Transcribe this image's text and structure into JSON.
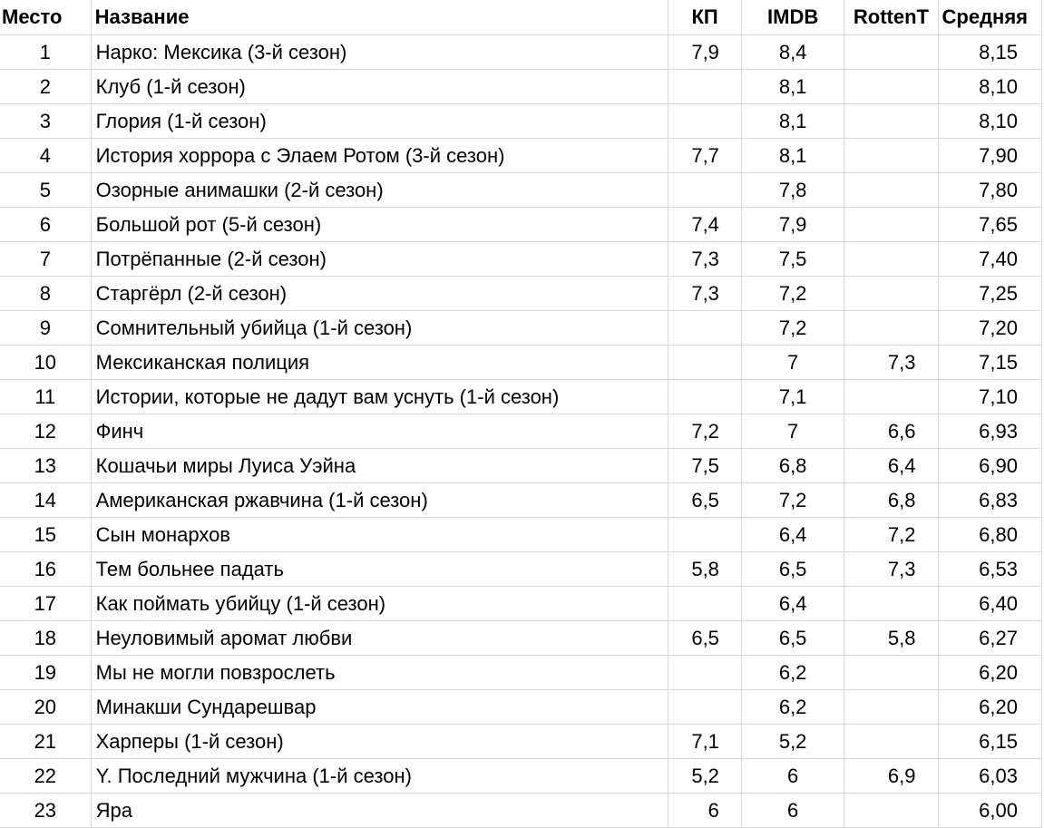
{
  "columns": {
    "rank": "Место",
    "name": "Название",
    "kp": "КП",
    "imdb": "IMDB",
    "rt": "RottenT",
    "avg": "Средняя"
  },
  "rows": [
    {
      "rank": "1",
      "name": "Нарко: Мексика (3-й сезон)",
      "kp": "7,9",
      "imdb": "8,4",
      "rt": "",
      "avg": "8,15"
    },
    {
      "rank": "2",
      "name": "Клуб (1-й сезон)",
      "kp": "",
      "imdb": "8,1",
      "rt": "",
      "avg": "8,10"
    },
    {
      "rank": "3",
      "name": "Глория (1-й сезон)",
      "kp": "",
      "imdb": "8,1",
      "rt": "",
      "avg": "8,10"
    },
    {
      "rank": "4",
      "name": "История хоррора с Элаем Ротом (3-й сезон)",
      "kp": "7,7",
      "imdb": "8,1",
      "rt": "",
      "avg": "7,90"
    },
    {
      "rank": "5",
      "name": "Озорные анимашки (2-й сезон)",
      "kp": "",
      "imdb": "7,8",
      "rt": "",
      "avg": "7,80"
    },
    {
      "rank": "6",
      "name": "Большой рот (5-й сезон)",
      "kp": "7,4",
      "imdb": "7,9",
      "rt": "",
      "avg": "7,65"
    },
    {
      "rank": "7",
      "name": "Потрёпанные (2-й сезон)",
      "kp": "7,3",
      "imdb": "7,5",
      "rt": "",
      "avg": "7,40"
    },
    {
      "rank": "8",
      "name": "Старгёрл (2-й сезон)",
      "kp": "7,3",
      "imdb": "7,2",
      "rt": "",
      "avg": "7,25"
    },
    {
      "rank": "9",
      "name": "Сомнительный убийца (1-й сезон)",
      "kp": "",
      "imdb": "7,2",
      "rt": "",
      "avg": "7,20"
    },
    {
      "rank": "10",
      "name": "Мексиканская полиция",
      "kp": "",
      "imdb": "7",
      "rt": "7,3",
      "avg": "7,15"
    },
    {
      "rank": "11",
      "name": "Истории, которые не дадут вам уснуть (1-й сезон)",
      "kp": "",
      "imdb": "7,1",
      "rt": "",
      "avg": "7,10"
    },
    {
      "rank": "12",
      "name": "Финч",
      "kp": "7,2",
      "imdb": "7",
      "rt": "6,6",
      "avg": "6,93"
    },
    {
      "rank": "13",
      "name": "Кошачьи миры Луиса Уэйна",
      "kp": "7,5",
      "imdb": "6,8",
      "rt": "6,4",
      "avg": "6,90"
    },
    {
      "rank": "14",
      "name": "Американская ржавчина (1-й сезон)",
      "kp": "6,5",
      "imdb": "7,2",
      "rt": "6,8",
      "avg": "6,83"
    },
    {
      "rank": "15",
      "name": "Сын монархов",
      "kp": "",
      "imdb": "6,4",
      "rt": "7,2",
      "avg": "6,80"
    },
    {
      "rank": "16",
      "name": "Тем больнее падать",
      "kp": "5,8",
      "imdb": "6,5",
      "rt": "7,3",
      "avg": "6,53"
    },
    {
      "rank": "17",
      "name": "Как поймать убийцу (1-й сезон)",
      "kp": "",
      "imdb": "6,4",
      "rt": "",
      "avg": "6,40"
    },
    {
      "rank": "18",
      "name": "Неуловимый аромат любви",
      "kp": "6,5",
      "imdb": "6,5",
      "rt": "5,8",
      "avg": "6,27"
    },
    {
      "rank": "19",
      "name": "Мы не могли повзрослеть",
      "kp": "",
      "imdb": "6,2",
      "rt": "",
      "avg": "6,20"
    },
    {
      "rank": "20",
      "name": "Минакши Сундарешвар",
      "kp": "",
      "imdb": "6,2",
      "rt": "",
      "avg": "6,20"
    },
    {
      "rank": "21",
      "name": "Харперы (1-й сезон)",
      "kp": "7,1",
      "imdb": "5,2",
      "rt": "",
      "avg": "6,15"
    },
    {
      "rank": "22",
      "name": "Y. Последний мужчина (1-й сезон)",
      "kp": "5,2",
      "imdb": "6",
      "rt": "6,9",
      "avg": "6,03"
    },
    {
      "rank": "23",
      "name": "Яра",
      "kp": "6",
      "imdb": "6",
      "rt": "",
      "avg": "6,00"
    }
  ]
}
